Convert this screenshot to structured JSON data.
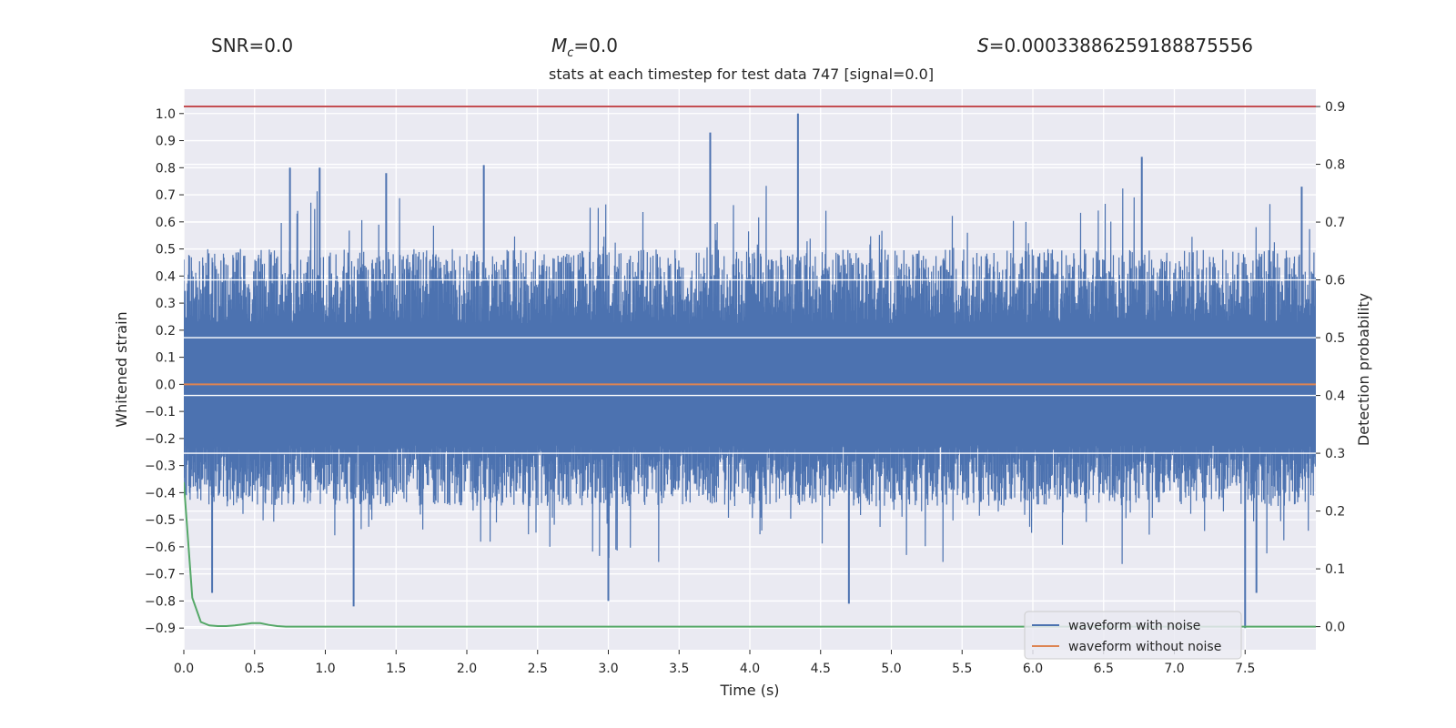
{
  "header": {
    "snr": "SNR=0.0",
    "mc_symbol": "M",
    "mc_sub": "c",
    "mc_value": "=0.0",
    "s_symbol": "S",
    "s_value": "=0.00033886259188875556"
  },
  "chart_data": {
    "type": "line",
    "title": "stats at each timestep for test data 747 [signal=0.0]",
    "xlabel": "Time (s)",
    "ylabel": "Whitened strain",
    "y2label": "Detection probability",
    "xlim": [
      0,
      8.0
    ],
    "ylim": [
      -0.98,
      1.09
    ],
    "y2lim": [
      -0.04,
      0.93
    ],
    "x_ticks": [
      "0.0",
      "0.5",
      "1.0",
      "1.5",
      "2.0",
      "2.5",
      "3.0",
      "3.5",
      "4.0",
      "4.5",
      "5.0",
      "5.5",
      "6.0",
      "6.5",
      "7.0",
      "7.5"
    ],
    "y_ticks": [
      "1.0",
      "0.9",
      "0.8",
      "0.7",
      "0.6",
      "0.5",
      "0.4",
      "0.3",
      "0.2",
      "0.1",
      "0.0",
      "−0.1",
      "−0.2",
      "−0.3",
      "−0.4",
      "−0.5",
      "−0.6",
      "−0.7",
      "−0.8",
      "−0.9"
    ],
    "y2_ticks": [
      "0.9",
      "0.8",
      "0.7",
      "0.6",
      "0.5",
      "0.4",
      "0.3",
      "0.2",
      "0.1",
      "0.0"
    ],
    "grid": true,
    "legend_position": "lower-right",
    "series": [
      {
        "name": "waveform with noise",
        "axis": "left",
        "color": "#4c72b0",
        "typical_range": [
          -0.45,
          0.5
        ],
        "spike_envelope": [
          -0.9,
          1.0
        ],
        "notable_peaks": [
          {
            "x": 0.75,
            "y": 0.8
          },
          {
            "x": 0.96,
            "y": 0.8
          },
          {
            "x": 1.43,
            "y": 0.78
          },
          {
            "x": 2.12,
            "y": 0.81
          },
          {
            "x": 3.72,
            "y": 0.93
          },
          {
            "x": 4.34,
            "y": 1.0
          },
          {
            "x": 6.77,
            "y": 0.84
          },
          {
            "x": 7.9,
            "y": 0.73
          }
        ],
        "notable_troughs": [
          {
            "x": 0.2,
            "y": -0.77
          },
          {
            "x": 1.2,
            "y": -0.82
          },
          {
            "x": 3.0,
            "y": -0.8
          },
          {
            "x": 4.7,
            "y": -0.81
          },
          {
            "x": 7.5,
            "y": -0.9
          },
          {
            "x": 7.58,
            "y": -0.77
          }
        ]
      },
      {
        "name": "waveform without noise",
        "axis": "left",
        "color": "#dd8452",
        "x": [
          0.0,
          8.0
        ],
        "y": [
          0.0,
          0.0
        ]
      },
      {
        "name": "",
        "axis": "right",
        "color": "#55a868",
        "x": [
          0.0,
          0.06,
          0.12,
          0.18,
          0.24,
          0.3,
          0.36,
          0.42,
          0.48,
          0.54,
          0.6,
          0.66,
          0.72,
          0.78,
          1.0,
          8.0
        ],
        "y": [
          0.25,
          0.05,
          0.008,
          0.002,
          0.001,
          0.001,
          0.002,
          0.004,
          0.006,
          0.006,
          0.003,
          0.001,
          0.0,
          0.0,
          0.0,
          0.0
        ]
      },
      {
        "name": "",
        "axis": "right",
        "color": "#c44e52",
        "x": [
          0.0,
          8.0
        ],
        "y": [
          0.9,
          0.9
        ]
      }
    ]
  }
}
